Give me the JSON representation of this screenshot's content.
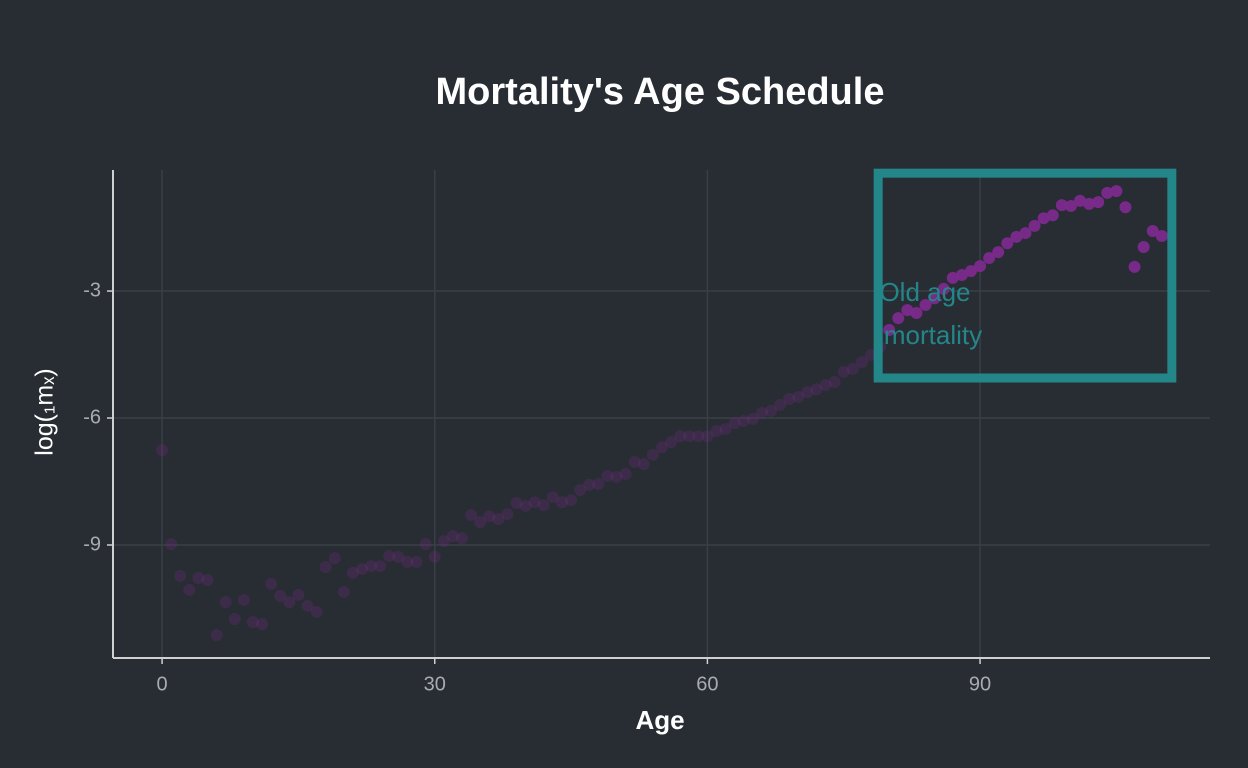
{
  "chart_data": {
    "type": "scatter",
    "title": "Mortality's Age Schedule",
    "xlabel": "Age",
    "ylabel": "log(₁mₓ)",
    "x": [
      0,
      1,
      2,
      3,
      4,
      5,
      6,
      7,
      8,
      9,
      10,
      11,
      12,
      13,
      14,
      15,
      16,
      17,
      18,
      19,
      20,
      21,
      22,
      23,
      24,
      25,
      26,
      27,
      28,
      29,
      30,
      31,
      32,
      33,
      34,
      35,
      36,
      37,
      38,
      39,
      40,
      41,
      42,
      43,
      44,
      45,
      46,
      47,
      48,
      49,
      50,
      51,
      52,
      53,
      54,
      55,
      56,
      57,
      58,
      59,
      60,
      61,
      62,
      63,
      64,
      65,
      66,
      67,
      68,
      69,
      70,
      71,
      72,
      73,
      74,
      75,
      76,
      77,
      78,
      79,
      80,
      81,
      82,
      83,
      84,
      85,
      86,
      87,
      88,
      89,
      90,
      91,
      92,
      93,
      94,
      95,
      96,
      97,
      98,
      99,
      100,
      101,
      102,
      103,
      104,
      105,
      106,
      107,
      108,
      109,
      110
    ],
    "values": [
      -6.76,
      -8.98,
      -9.73,
      -10.06,
      -9.78,
      -9.83,
      -11.13,
      -10.35,
      -10.75,
      -10.3,
      -10.82,
      -10.87,
      -9.92,
      -10.2,
      -10.35,
      -10.18,
      -10.44,
      -10.58,
      -9.52,
      -9.31,
      -10.11,
      -9.66,
      -9.57,
      -9.5,
      -9.5,
      -9.26,
      -9.28,
      -9.4,
      -9.4,
      -8.98,
      -9.28,
      -8.91,
      -8.79,
      -8.84,
      -8.29,
      -8.46,
      -8.32,
      -8.39,
      -8.27,
      -8.01,
      -8.08,
      -7.99,
      -8.06,
      -7.87,
      -7.99,
      -7.94,
      -7.7,
      -7.58,
      -7.56,
      -7.37,
      -7.39,
      -7.32,
      -7.04,
      -7.09,
      -6.87,
      -6.69,
      -6.57,
      -6.43,
      -6.43,
      -6.43,
      -6.43,
      -6.31,
      -6.26,
      -6.12,
      -6.07,
      -6.02,
      -5.88,
      -5.83,
      -5.69,
      -5.55,
      -5.5,
      -5.39,
      -5.32,
      -5.22,
      -5.15,
      -4.91,
      -4.84,
      -4.68,
      -4.51,
      -4.32,
      -3.92,
      -3.64,
      -3.45,
      -3.52,
      -3.33,
      -3.17,
      -2.95,
      -2.69,
      -2.62,
      -2.53,
      -2.41,
      -2.22,
      -2.08,
      -1.87,
      -1.72,
      -1.63,
      -1.46,
      -1.28,
      -1.21,
      -0.97,
      -0.99,
      -0.87,
      -0.94,
      -0.9,
      -0.68,
      -0.64,
      -1.02,
      -2.43,
      -1.96,
      -1.58,
      -1.7
    ],
    "color": "#7b2a8c",
    "highlight_x": [
      80,
      110
    ],
    "annotation": [
      "Old age",
      "mortality"
    ],
    "annotation_color": "#23878a",
    "xlim": [
      -5.4,
      115.3
    ],
    "ylim": [
      -11.67,
      -0.14
    ],
    "xticks": [
      0,
      30,
      60,
      90
    ],
    "yticks": [
      -3,
      -6,
      -9
    ],
    "grid": true
  }
}
